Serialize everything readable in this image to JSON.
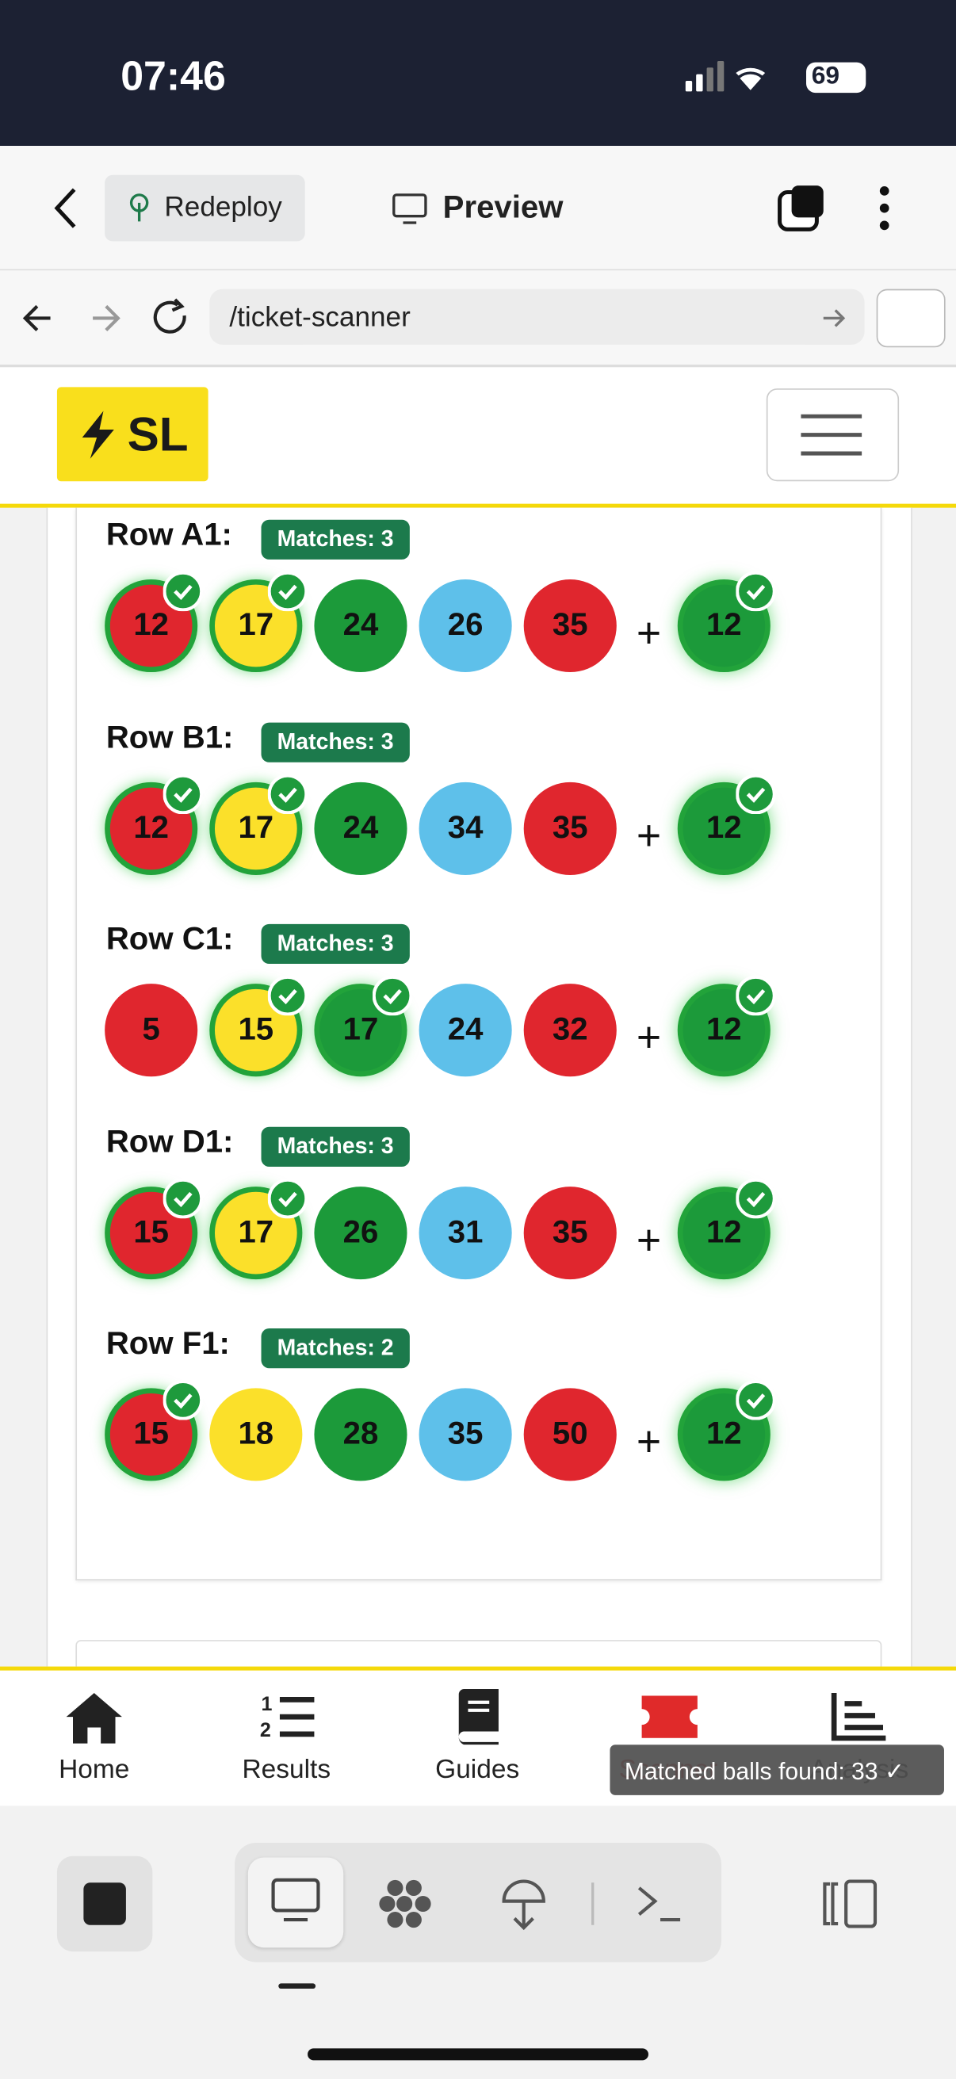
{
  "status_bar": {
    "time": "07:46",
    "battery": "69"
  },
  "toolbar": {
    "redeploy": "Redeploy",
    "preview": "Preview"
  },
  "url_bar": {
    "url": "/ticket-scanner"
  },
  "header": {
    "logo": "SL"
  },
  "plus": "+",
  "rows": [
    {
      "label": "Row A1:",
      "matches": "Matches: 3",
      "balls": [
        {
          "number": 12,
          "color": "red",
          "matched": true
        },
        {
          "number": 17,
          "color": "yellow",
          "matched": true
        },
        {
          "number": 24,
          "color": "green",
          "matched": false
        },
        {
          "number": 26,
          "color": "blue",
          "matched": false
        },
        {
          "number": 35,
          "color": "red",
          "matched": false
        }
      ],
      "bonus": {
        "number": 12,
        "matched": true
      }
    },
    {
      "label": "Row B1:",
      "matches": "Matches: 3",
      "balls": [
        {
          "number": 12,
          "color": "red",
          "matched": true
        },
        {
          "number": 17,
          "color": "yellow",
          "matched": true
        },
        {
          "number": 24,
          "color": "green",
          "matched": false
        },
        {
          "number": 34,
          "color": "blue",
          "matched": false
        },
        {
          "number": 35,
          "color": "red",
          "matched": false
        }
      ],
      "bonus": {
        "number": 12,
        "matched": true
      }
    },
    {
      "label": "Row C1:",
      "matches": "Matches: 3",
      "balls": [
        {
          "number": 5,
          "color": "red",
          "matched": false
        },
        {
          "number": 15,
          "color": "yellow",
          "matched": true
        },
        {
          "number": 17,
          "color": "green",
          "matched": true
        },
        {
          "number": 24,
          "color": "blue",
          "matched": false
        },
        {
          "number": 32,
          "color": "red",
          "matched": false
        }
      ],
      "bonus": {
        "number": 12,
        "matched": true
      }
    },
    {
      "label": "Row D1:",
      "matches": "Matches: 3",
      "balls": [
        {
          "number": 15,
          "color": "red",
          "matched": true
        },
        {
          "number": 17,
          "color": "yellow",
          "matched": true
        },
        {
          "number": 26,
          "color": "green",
          "matched": false
        },
        {
          "number": 31,
          "color": "blue",
          "matched": false
        },
        {
          "number": 35,
          "color": "red",
          "matched": false
        }
      ],
      "bonus": {
        "number": 12,
        "matched": true
      }
    },
    {
      "label": "Row F1:",
      "matches": "Matches: 2",
      "balls": [
        {
          "number": 15,
          "color": "red",
          "matched": true
        },
        {
          "number": 18,
          "color": "yellow",
          "matched": false
        },
        {
          "number": 28,
          "color": "green",
          "matched": false
        },
        {
          "number": 35,
          "color": "blue",
          "matched": false
        },
        {
          "number": 50,
          "color": "red",
          "matched": false
        }
      ],
      "bonus": {
        "number": 12,
        "matched": true
      }
    }
  ],
  "nav": [
    "Home",
    "Results",
    "Guides",
    "Scanner",
    "Analysis"
  ],
  "toast": "Matched balls found: 33 ✓"
}
